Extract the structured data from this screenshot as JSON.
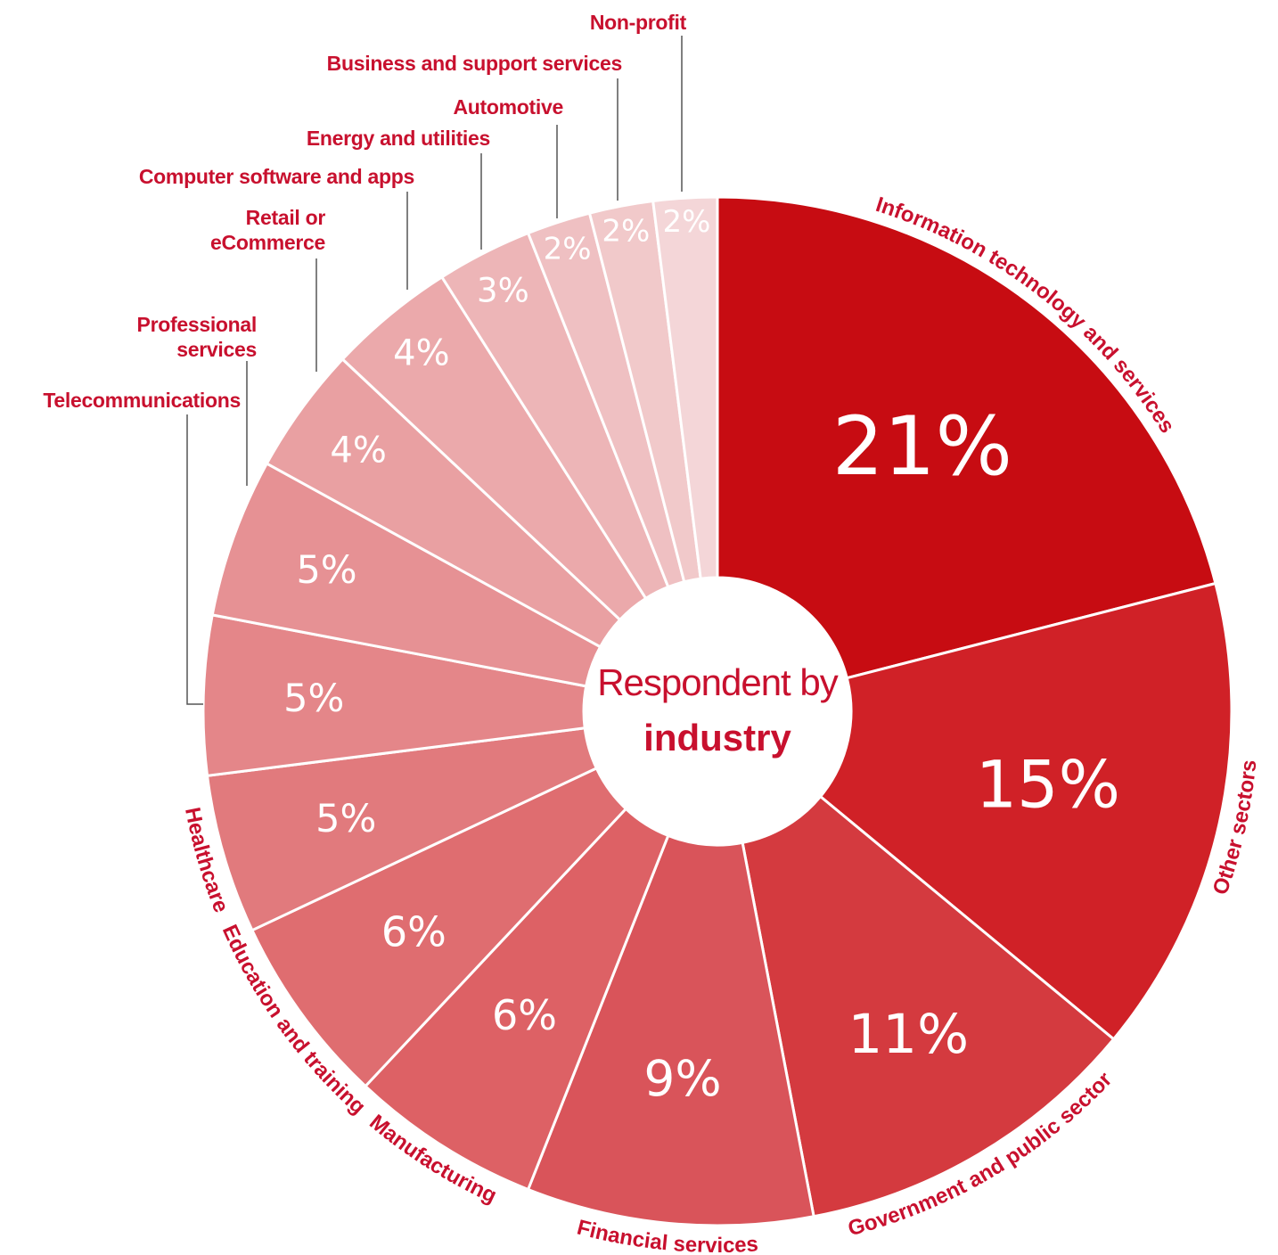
{
  "chart_data": {
    "type": "donut",
    "title_lines": [
      "Respondent by",
      "industry"
    ],
    "categories": [
      "Information technology and services",
      "Other sectors",
      "Government and public sector",
      "Financial services",
      "Manufacturing",
      "Education and training",
      "Healthcare",
      "Telecommunications",
      "Professional services",
      "Retail or eCommerce",
      "Computer software and apps",
      "Energy and utilities",
      "Automotive",
      "Business and support services",
      "Non-profit"
    ],
    "values": [
      21,
      15,
      11,
      9,
      6,
      6,
      5,
      5,
      5,
      4,
      4,
      3,
      2,
      2,
      2
    ],
    "value_labels": [
      "21%",
      "15%",
      "11%",
      "9%",
      "6%",
      "6%",
      "5%",
      "5%",
      "5%",
      "4%",
      "4%",
      "3%",
      "2%",
      "2%",
      "2%"
    ],
    "colors": [
      "#c70c12",
      "#d02127",
      "#d43a3f",
      "#d9545a",
      "#dd6165",
      "#df6d70",
      "#e17a7d",
      "#e48689",
      "#e69194",
      "#e9a0a2",
      "#eba9ab",
      "#edb5b7",
      "#efc0c2",
      "#f1c9ca",
      "#f4d6d8"
    ],
    "label_color": "#c8102e"
  }
}
